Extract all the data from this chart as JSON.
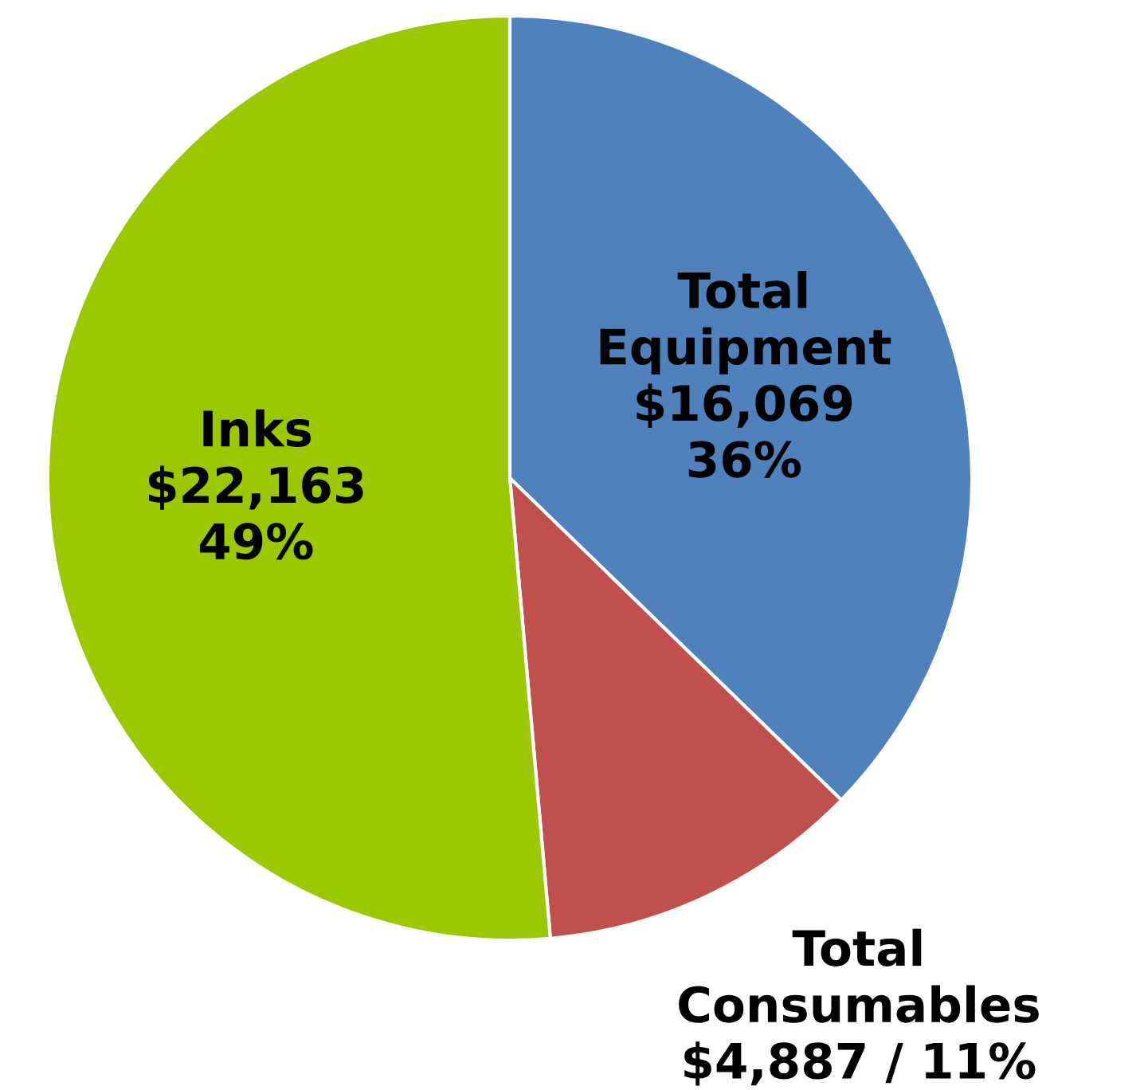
{
  "chart_data": {
    "type": "pie",
    "categories": [
      "Total\nEquipment",
      "Total\nConsumables",
      "Inks"
    ],
    "values": [
      16069,
      4887,
      22163
    ],
    "value_labels": [
      "$16,069\n36%",
      "$4,887 / 11%",
      "$22,163\n49%"
    ],
    "colors": [
      "#4f81bd",
      "#c0504d",
      "#9bc800"
    ]
  }
}
